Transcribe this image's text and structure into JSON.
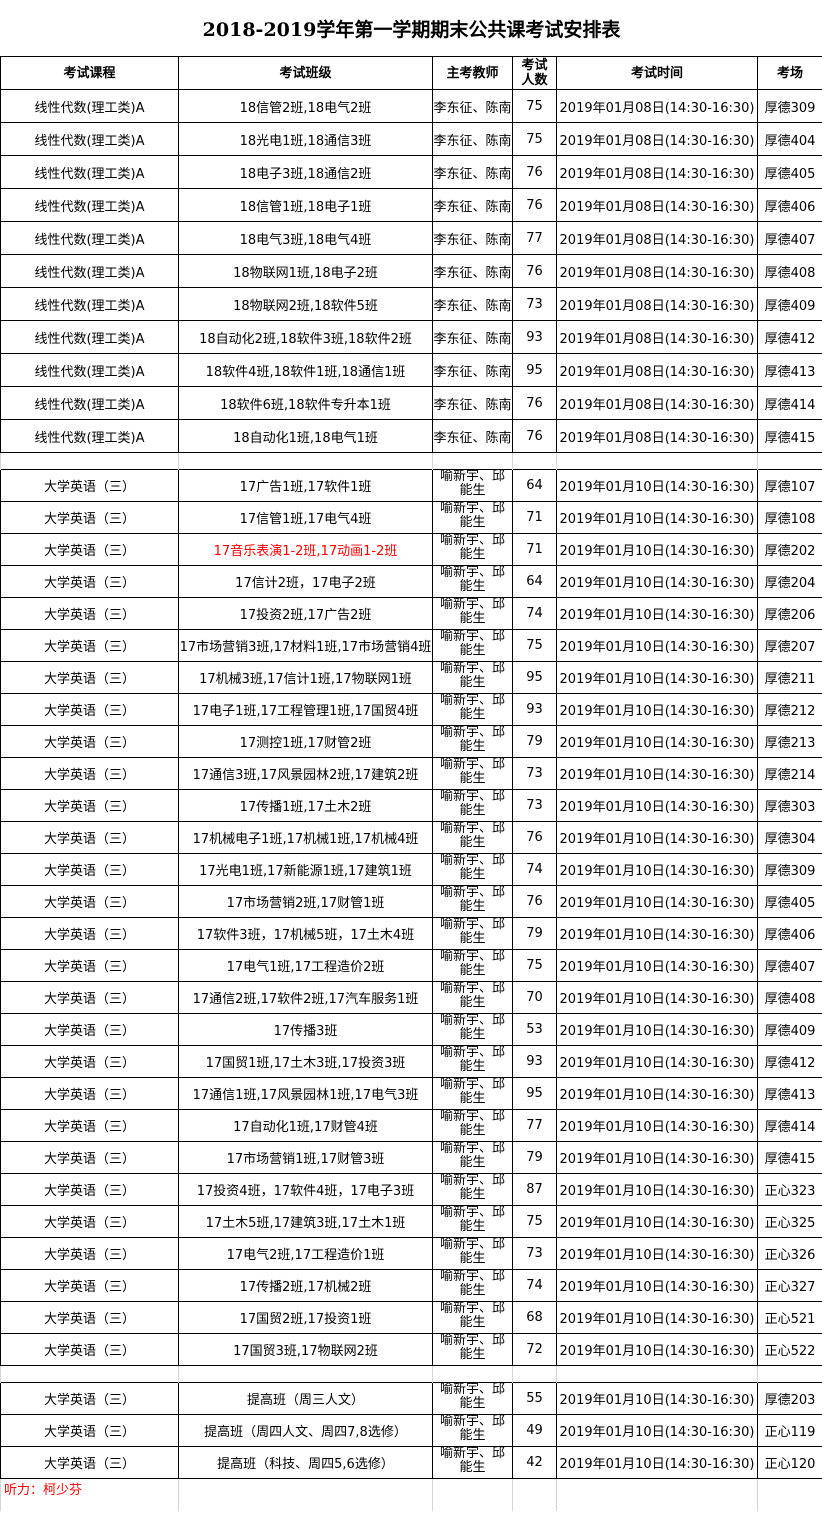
{
  "title": "2018-2019学年第一学期期末公共课考试安排表",
  "headers": [
    "考试课程",
    "考试班级",
    "主考教师",
    "考试人数",
    "考试时间",
    "考场"
  ],
  "colors": {
    "highlight": "#ff0000",
    "note": "#ff0000"
  },
  "sections": [
    {
      "rows": [
        {
          "course": "线性代数(理工类)A",
          "classes": "18信管2班,18电气2班",
          "teacher": "李东征、陈南",
          "count": "75",
          "time": "2019年01月08日(14:30-16:30)",
          "room": "厚德309"
        },
        {
          "course": "线性代数(理工类)A",
          "classes": "18光电1班,18通信3班",
          "teacher": "李东征、陈南",
          "count": "75",
          "time": "2019年01月08日(14:30-16:30)",
          "room": "厚德404"
        },
        {
          "course": "线性代数(理工类)A",
          "classes": "18电子3班,18通信2班",
          "teacher": "李东征、陈南",
          "count": "76",
          "time": "2019年01月08日(14:30-16:30)",
          "room": "厚德405"
        },
        {
          "course": "线性代数(理工类)A",
          "classes": "18信管1班,18电子1班",
          "teacher": "李东征、陈南",
          "count": "76",
          "time": "2019年01月08日(14:30-16:30)",
          "room": "厚德406"
        },
        {
          "course": "线性代数(理工类)A",
          "classes": "18电气3班,18电气4班",
          "teacher": "李东征、陈南",
          "count": "77",
          "time": "2019年01月08日(14:30-16:30)",
          "room": "厚德407"
        },
        {
          "course": "线性代数(理工类)A",
          "classes": "18物联网1班,18电子2班",
          "teacher": "李东征、陈南",
          "count": "76",
          "time": "2019年01月08日(14:30-16:30)",
          "room": "厚德408"
        },
        {
          "course": "线性代数(理工类)A",
          "classes": "18物联网2班,18软件5班",
          "teacher": "李东征、陈南",
          "count": "73",
          "time": "2019年01月08日(14:30-16:30)",
          "room": "厚德409"
        },
        {
          "course": "线性代数(理工类)A",
          "classes": "18自动化2班,18软件3班,18软件2班",
          "teacher": "李东征、陈南",
          "count": "93",
          "time": "2019年01月08日(14:30-16:30)",
          "room": "厚德412"
        },
        {
          "course": "线性代数(理工类)A",
          "classes": "18软件4班,18软件1班,18通信1班",
          "teacher": "李东征、陈南",
          "count": "95",
          "time": "2019年01月08日(14:30-16:30)",
          "room": "厚德413"
        },
        {
          "course": "线性代数(理工类)A",
          "classes": "18软件6班,18软件专升本1班",
          "teacher": "李东征、陈南",
          "count": "76",
          "time": "2019年01月08日(14:30-16:30)",
          "room": "厚德414"
        },
        {
          "course": "线性代数(理工类)A",
          "classes": "18自动化1班,18电气1班",
          "teacher": "李东征、陈南",
          "count": "76",
          "time": "2019年01月08日(14:30-16:30)",
          "room": "厚德415"
        }
      ]
    },
    {
      "rows": [
        {
          "course": "大学英语（三）",
          "classes": "17广告1班,17软件1班",
          "teacher": "喻新宇、邱能生",
          "count": "64",
          "time": "2019年01月10日(14:30-16:30)",
          "room": "厚德107"
        },
        {
          "course": "大学英语（三）",
          "classes": "17信管1班,17电气4班",
          "teacher": "喻新宇、邱能生",
          "count": "71",
          "time": "2019年01月10日(14:30-16:30)",
          "room": "厚德108"
        },
        {
          "course": "大学英语（三）",
          "classes": "17音乐表演1-2班,17动画1-2班",
          "teacher": "喻新宇、邱能生",
          "count": "71",
          "time": "2019年01月10日(14:30-16:30)",
          "room": "厚德202",
          "highlight": true
        },
        {
          "course": "大学英语（三）",
          "classes": "17信计2班，17电子2班",
          "teacher": "喻新宇、邱能生",
          "count": "64",
          "time": "2019年01月10日(14:30-16:30)",
          "room": "厚德204"
        },
        {
          "course": "大学英语（三）",
          "classes": "17投资2班,17广告2班",
          "teacher": "喻新宇、邱能生",
          "count": "74",
          "time": "2019年01月10日(14:30-16:30)",
          "room": "厚德206"
        },
        {
          "course": "大学英语（三）",
          "classes": "17市场营销3班,17材料1班,17市场营销4班",
          "teacher": "喻新宇、邱能生",
          "count": "75",
          "time": "2019年01月10日(14:30-16:30)",
          "room": "厚德207"
        },
        {
          "course": "大学英语（三）",
          "classes": "17机械3班,17信计1班,17物联网1班",
          "teacher": "喻新宇、邱能生",
          "count": "95",
          "time": "2019年01月10日(14:30-16:30)",
          "room": "厚德211"
        },
        {
          "course": "大学英语（三）",
          "classes": "17电子1班,17工程管理1班,17国贸4班",
          "teacher": "喻新宇、邱能生",
          "count": "93",
          "time": "2019年01月10日(14:30-16:30)",
          "room": "厚德212"
        },
        {
          "course": "大学英语（三）",
          "classes": "17测控1班,17财管2班",
          "teacher": "喻新宇、邱能生",
          "count": "79",
          "time": "2019年01月10日(14:30-16:30)",
          "room": "厚德213"
        },
        {
          "course": "大学英语（三）",
          "classes": "17通信3班,17风景园林2班,17建筑2班",
          "teacher": "喻新宇、邱能生",
          "count": "73",
          "time": "2019年01月10日(14:30-16:30)",
          "room": "厚德214"
        },
        {
          "course": "大学英语（三）",
          "classes": "17传播1班,17土木2班",
          "teacher": "喻新宇、邱能生",
          "count": "73",
          "time": "2019年01月10日(14:30-16:30)",
          "room": "厚德303"
        },
        {
          "course": "大学英语（三）",
          "classes": "17机械电子1班,17机械1班,17机械4班",
          "teacher": "喻新宇、邱能生",
          "count": "76",
          "time": "2019年01月10日(14:30-16:30)",
          "room": "厚德304"
        },
        {
          "course": "大学英语（三）",
          "classes": "17光电1班,17新能源1班,17建筑1班",
          "teacher": "喻新宇、邱能生",
          "count": "74",
          "time": "2019年01月10日(14:30-16:30)",
          "room": "厚德309"
        },
        {
          "course": "大学英语（三）",
          "classes": "17市场营销2班,17财管1班",
          "teacher": "喻新宇、邱能生",
          "count": "76",
          "time": "2019年01月10日(14:30-16:30)",
          "room": "厚德405"
        },
        {
          "course": "大学英语（三）",
          "classes": "17软件3班，17机械5班，17土木4班",
          "teacher": "喻新宇、邱能生",
          "count": "79",
          "time": "2019年01月10日(14:30-16:30)",
          "room": "厚德406"
        },
        {
          "course": "大学英语（三）",
          "classes": "17电气1班,17工程造价2班",
          "teacher": "喻新宇、邱能生",
          "count": "75",
          "time": "2019年01月10日(14:30-16:30)",
          "room": "厚德407"
        },
        {
          "course": "大学英语（三）",
          "classes": "17通信2班,17软件2班,17汽车服务1班",
          "teacher": "喻新宇、邱能生",
          "count": "70",
          "time": "2019年01月10日(14:30-16:30)",
          "room": "厚德408"
        },
        {
          "course": "大学英语（三）",
          "classes": "17传播3班",
          "teacher": "喻新宇、邱能生",
          "count": "53",
          "time": "2019年01月10日(14:30-16:30)",
          "room": "厚德409"
        },
        {
          "course": "大学英语（三）",
          "classes": "17国贸1班,17土木3班,17投资3班",
          "teacher": "喻新宇、邱能生",
          "count": "93",
          "time": "2019年01月10日(14:30-16:30)",
          "room": "厚德412"
        },
        {
          "course": "大学英语（三）",
          "classes": "17通信1班,17风景园林1班,17电气3班",
          "teacher": "喻新宇、邱能生",
          "count": "95",
          "time": "2019年01月10日(14:30-16:30)",
          "room": "厚德413"
        },
        {
          "course": "大学英语（三）",
          "classes": "17自动化1班,17财管4班",
          "teacher": "喻新宇、邱能生",
          "count": "77",
          "time": "2019年01月10日(14:30-16:30)",
          "room": "厚德414"
        },
        {
          "course": "大学英语（三）",
          "classes": "17市场营销1班,17财管3班",
          "teacher": "喻新宇、邱能生",
          "count": "79",
          "time": "2019年01月10日(14:30-16:30)",
          "room": "厚德415"
        },
        {
          "course": "大学英语（三）",
          "classes": "17投资4班，17软件4班，17电子3班",
          "teacher": "喻新宇、邱能生",
          "count": "87",
          "time": "2019年01月10日(14:30-16:30)",
          "room": "正心323"
        },
        {
          "course": "大学英语（三）",
          "classes": "17土木5班,17建筑3班,17土木1班",
          "teacher": "喻新宇、邱能生",
          "count": "75",
          "time": "2019年01月10日(14:30-16:30)",
          "room": "正心325"
        },
        {
          "course": "大学英语（三）",
          "classes": "17电气2班,17工程造价1班",
          "teacher": "喻新宇、邱能生",
          "count": "73",
          "time": "2019年01月10日(14:30-16:30)",
          "room": "正心326"
        },
        {
          "course": "大学英语（三）",
          "classes": "17传播2班,17机械2班",
          "teacher": "喻新宇、邱能生",
          "count": "74",
          "time": "2019年01月10日(14:30-16:30)",
          "room": "正心327"
        },
        {
          "course": "大学英语（三）",
          "classes": "17国贸2班,17投资1班",
          "teacher": "喻新宇、邱能生",
          "count": "68",
          "time": "2019年01月10日(14:30-16:30)",
          "room": "正心521"
        },
        {
          "course": "大学英语（三）",
          "classes": "17国贸3班,17物联网2班",
          "teacher": "喻新宇、邱能生",
          "count": "72",
          "time": "2019年01月10日(14:30-16:30)",
          "room": "正心522"
        }
      ]
    },
    {
      "rows": [
        {
          "course": "大学英语（三）",
          "classes": "提高班（周三人文）",
          "teacher": "喻新宇、邱能生",
          "count": "55",
          "time": "2019年01月10日(14:30-16:30)",
          "room": "厚德203"
        },
        {
          "course": "大学英语（三）",
          "classes": "提高班（周四人文、周四7,8选修）",
          "teacher": "喻新宇、邱能生",
          "count": "49",
          "time": "2019年01月10日(14:30-16:30)",
          "room": "正心119"
        },
        {
          "course": "大学英语（三）",
          "classes": "提高班（科技、周四5,6选修）",
          "teacher": "喻新宇、邱能生",
          "count": "42",
          "time": "2019年01月10日(14:30-16:30)",
          "room": "正心120"
        }
      ]
    }
  ],
  "footer_note": "听力：柯少芬"
}
